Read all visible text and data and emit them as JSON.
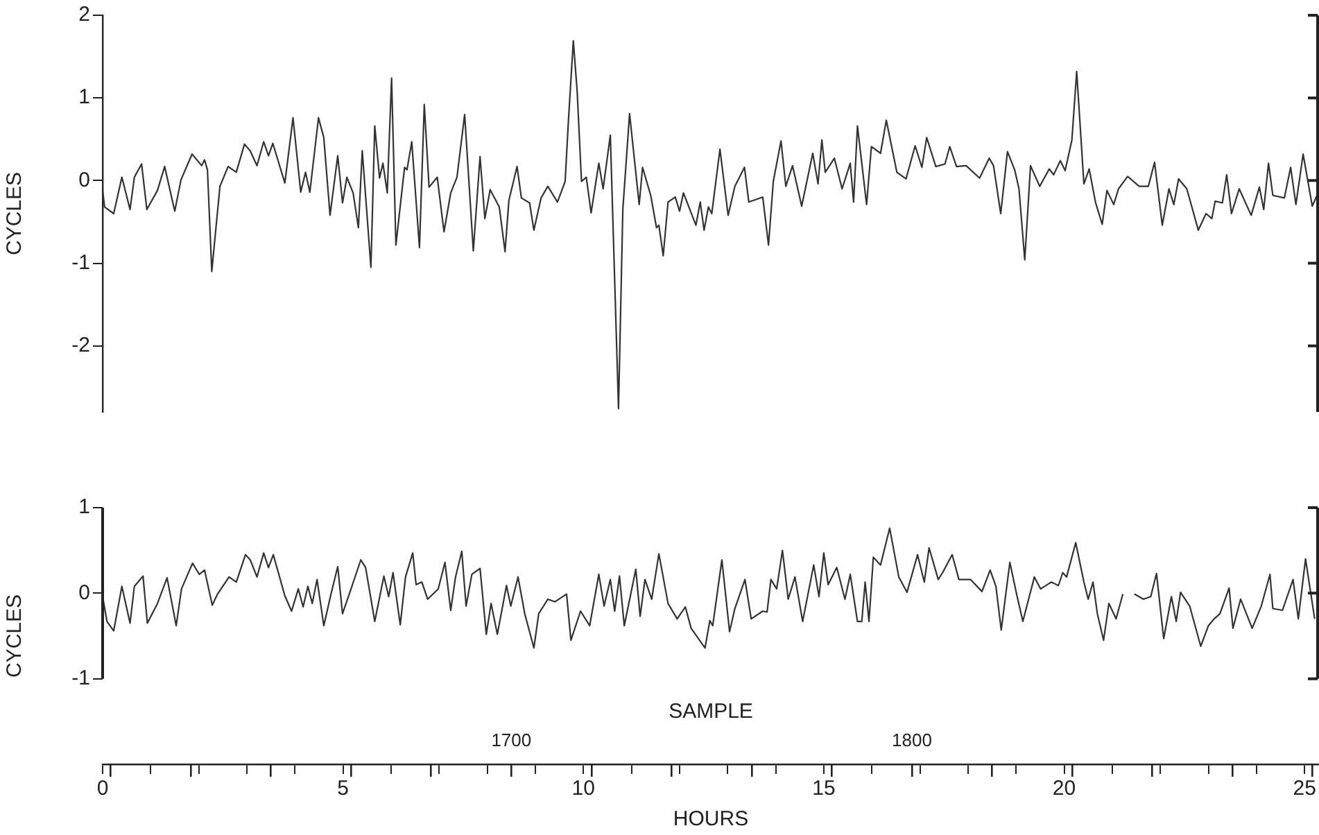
{
  "chart_data": [
    {
      "type": "line",
      "ylabel": "CYCLES",
      "xlim": [
        0,
        25.3
      ],
      "ylim": [
        -2.8,
        2
      ],
      "yticks": [
        -2,
        -1,
        0,
        1,
        2
      ],
      "tick_labels": "y",
      "grid": false,
      "legend": false,
      "marker": "none",
      "line_style": "solid",
      "series": [
        {
          "color": "#333333",
          "x": [
            0.0,
            0.04,
            0.23,
            0.4,
            0.57,
            0.66,
            0.81,
            0.92,
            1.14,
            1.29,
            1.5,
            1.63,
            1.86,
            2.06,
            2.12,
            2.18,
            2.27,
            2.44,
            2.61,
            2.78,
            2.95,
            3.07,
            3.21,
            3.35,
            3.45,
            3.54,
            3.79,
            3.96,
            4.12,
            4.22,
            4.31,
            4.49,
            4.6,
            4.73,
            4.89,
            4.99,
            5.08,
            5.21,
            5.32,
            5.4,
            5.58,
            5.66,
            5.76,
            5.83,
            5.92,
            6.01,
            6.1,
            6.28,
            6.33,
            6.43,
            6.59,
            6.69,
            6.79,
            6.96,
            7.1,
            7.24,
            7.37,
            7.53,
            7.71,
            7.85,
            7.95,
            8.06,
            8.25,
            8.37,
            8.45,
            8.62,
            8.71,
            8.88,
            8.97,
            9.12,
            9.26,
            9.46,
            9.62,
            9.69,
            9.79,
            9.87,
            9.96,
            10.06,
            10.16,
            10.32,
            10.41,
            10.56,
            10.73,
            10.82,
            10.96,
            11.16,
            11.23,
            11.4,
            11.52,
            11.57,
            11.66,
            11.76,
            11.91,
            12.0,
            12.08,
            12.34,
            12.43,
            12.51,
            12.6,
            12.67,
            12.84,
            13.01,
            13.15,
            13.35,
            13.44,
            13.73,
            13.85,
            13.95,
            14.11,
            14.21,
            14.35,
            14.54,
            14.77,
            14.88,
            14.96,
            15.03,
            15.22,
            15.38,
            15.55,
            15.62,
            15.7,
            15.89,
            15.99,
            16.18,
            16.3,
            16.52,
            16.71,
            16.9,
            17.04,
            17.14,
            17.33,
            17.52,
            17.62,
            17.76,
            17.96,
            18.24,
            18.44,
            18.53,
            18.68,
            18.82,
            18.97,
            19.06,
            19.18,
            19.3,
            19.49,
            19.69,
            19.78,
            19.92,
            20.02,
            20.16,
            20.26,
            20.41,
            20.52,
            20.65,
            20.79,
            20.89,
            21.03,
            21.13,
            21.32,
            21.56,
            21.75,
            21.88,
            22.04,
            22.18,
            22.28,
            22.38,
            22.55,
            22.79,
            22.95,
            23.07,
            23.14,
            23.29,
            23.38,
            23.48,
            23.64,
            23.89,
            24.06,
            24.15,
            24.25,
            24.34,
            24.58,
            24.71,
            24.82,
            24.97,
            25.16,
            25.28
          ],
          "values": [
            -0.12,
            -0.32,
            -0.4,
            0.04,
            -0.35,
            0.04,
            0.2,
            -0.35,
            -0.12,
            0.17,
            -0.37,
            0.01,
            0.32,
            0.18,
            0.25,
            0.13,
            -1.1,
            -0.07,
            0.17,
            0.1,
            0.44,
            0.36,
            0.18,
            0.47,
            0.3,
            0.45,
            -0.03,
            0.76,
            -0.14,
            0.1,
            -0.14,
            0.76,
            0.52,
            -0.42,
            0.3,
            -0.27,
            0.04,
            -0.15,
            -0.57,
            0.36,
            -1.05,
            0.66,
            0.03,
            0.21,
            -0.15,
            1.24,
            -0.78,
            0.16,
            0.13,
            0.47,
            -0.81,
            0.92,
            -0.08,
            0.04,
            -0.62,
            -0.15,
            0.04,
            0.8,
            -0.85,
            0.29,
            -0.46,
            -0.11,
            -0.32,
            -0.86,
            -0.24,
            0.17,
            -0.21,
            -0.27,
            -0.6,
            -0.21,
            -0.07,
            -0.26,
            -0.01,
            0.74,
            1.69,
            1.08,
            -0.01,
            0.04,
            -0.39,
            0.21,
            -0.1,
            0.55,
            -2.76,
            -0.35,
            0.81,
            -0.29,
            0.16,
            -0.18,
            -0.57,
            -0.54,
            -0.91,
            -0.26,
            -0.2,
            -0.37,
            -0.15,
            -0.54,
            -0.26,
            -0.6,
            -0.32,
            -0.4,
            0.38,
            -0.42,
            -0.07,
            0.16,
            -0.26,
            -0.2,
            -0.78,
            -0.01,
            0.48,
            -0.07,
            0.18,
            -0.31,
            0.33,
            -0.04,
            0.49,
            0.1,
            0.27,
            -0.1,
            0.21,
            -0.26,
            0.66,
            -0.29,
            0.41,
            0.33,
            0.73,
            0.1,
            0.02,
            0.42,
            0.16,
            0.52,
            0.17,
            0.2,
            0.41,
            0.17,
            0.18,
            0.03,
            0.27,
            0.18,
            -0.4,
            0.35,
            0.13,
            -0.1,
            -0.96,
            0.18,
            -0.07,
            0.14,
            0.07,
            0.24,
            0.12,
            0.49,
            1.32,
            -0.04,
            0.14,
            -0.26,
            -0.53,
            -0.12,
            -0.29,
            -0.1,
            0.05,
            -0.07,
            -0.07,
            0.22,
            -0.54,
            -0.1,
            -0.29,
            0.02,
            -0.1,
            -0.6,
            -0.4,
            -0.46,
            -0.25,
            -0.27,
            0.07,
            -0.4,
            -0.1,
            -0.42,
            -0.08,
            -0.35,
            0.21,
            -0.18,
            -0.21,
            0.16,
            -0.29,
            0.32,
            -0.31,
            -0.15
          ]
        }
      ]
    },
    {
      "type": "line",
      "ylabel": "CYCLES",
      "xlabel": "HOURS",
      "x2label": "SAMPLE",
      "xlim": [
        0,
        25.3
      ],
      "ylim": [
        -2,
        1
      ],
      "yticks": [
        -1,
        0,
        1
      ],
      "x2lim": [
        1598,
        1901.6
      ],
      "grid": false,
      "legend": false,
      "marker": "none",
      "line_style": "solid",
      "xticks": [
        0,
        {
          "value": 1,
          "label": null
        },
        {
          "value": 2,
          "label": null
        },
        {
          "value": 3,
          "label": null
        },
        {
          "value": 4,
          "label": null
        },
        5,
        {
          "value": 6,
          "label": null
        },
        {
          "value": 7,
          "label": null
        },
        {
          "value": 8,
          "label": null
        },
        {
          "value": 9,
          "label": null
        },
        10,
        {
          "value": 11,
          "label": null
        },
        {
          "value": 12,
          "label": null
        },
        {
          "value": 13,
          "label": null
        },
        {
          "value": 14,
          "label": null
        },
        15,
        {
          "value": 16,
          "label": null
        },
        {
          "value": 17,
          "label": null
        },
        {
          "value": 18,
          "label": null
        },
        {
          "value": 19,
          "label": null
        },
        20,
        {
          "value": 21,
          "label": null
        },
        {
          "value": 22,
          "label": null
        },
        {
          "value": 23,
          "label": null
        },
        {
          "value": 24,
          "label": null
        },
        25
      ],
      "x2ticks": [
        {
          "value": 1600,
          "label": null
        },
        {
          "value": 1620,
          "label": null
        },
        {
          "value": 1640,
          "label": null
        },
        {
          "value": 1660,
          "label": null
        },
        {
          "value": 1680,
          "label": null
        },
        1700,
        {
          "value": 1720,
          "label": null
        },
        {
          "value": 1740,
          "label": null
        },
        {
          "value": 1760,
          "label": null
        },
        {
          "value": 1780,
          "label": null
        },
        1800,
        {
          "value": 1820,
          "label": null
        },
        {
          "value": 1840,
          "label": null
        },
        {
          "value": 1860,
          "label": null
        },
        {
          "value": 1880,
          "label": null
        },
        {
          "value": 1900,
          "label": null
        }
      ],
      "series": [
        {
          "color": "#333333",
          "x": [
            0.0,
            0.09,
            0.23,
            0.4,
            0.57,
            0.66,
            0.84,
            0.93,
            1.14,
            1.34,
            1.53,
            1.64,
            1.87,
            2.01,
            2.12,
            2.28,
            2.39,
            2.63,
            2.78,
            2.97,
            3.07,
            3.21,
            3.35,
            3.45,
            3.55,
            3.79,
            3.93,
            4.07,
            4.17,
            4.27,
            4.36,
            4.46,
            4.6,
            4.75,
            4.89,
            4.99,
            5.13,
            5.37,
            5.47,
            5.66,
            5.85,
            5.95,
            6.04,
            6.19,
            6.3,
            6.45,
            6.52,
            6.64,
            6.76,
            6.98,
            7.12,
            7.24,
            7.34,
            7.47,
            7.56,
            7.68,
            7.85,
            7.98,
            8.08,
            8.21,
            8.4,
            8.49,
            8.64,
            8.78,
            8.97,
            9.07,
            9.26,
            9.41,
            9.65,
            9.74,
            9.94,
            10.13,
            10.32,
            10.43,
            10.56,
            10.65,
            10.75,
            10.85,
            11.09,
            11.18,
            11.28,
            11.42,
            11.57,
            11.76,
            11.95,
            12.12,
            12.24,
            12.53,
            12.63,
            12.69,
            12.88,
            13.04,
            13.15,
            13.36,
            13.49,
            13.73,
            13.82,
            13.9,
            14.02,
            14.14,
            14.26,
            14.4,
            14.56,
            14.79,
            14.9,
            15.0,
            15.09,
            15.27,
            15.44,
            15.55,
            15.7,
            15.79,
            15.86,
            15.94,
            16.03,
            16.18,
            16.37,
            16.56,
            16.73,
            16.95,
            17.09,
            17.19,
            17.38,
            17.48,
            17.67,
            17.81,
            18.05,
            18.29,
            18.46,
            18.58,
            18.69,
            18.87,
            19.01,
            19.14,
            19.38,
            19.51,
            19.73,
            19.88,
            19.97,
            20.05,
            20.24,
            20.41,
            20.5,
            20.6,
            20.69,
            20.82,
            20.93,
            21.08,
            21.22,
            21.3,
            21.46,
            21.65,
            21.8,
            21.92,
            22.07,
            22.23,
            22.33,
            22.42,
            22.61,
            22.84,
            23.0,
            23.12,
            23.24,
            23.43,
            23.51,
            23.67,
            23.91,
            24.1,
            24.28,
            24.34,
            24.54,
            24.76,
            24.87,
            25.02,
            25.21
          ],
          "values": [
            -0.04,
            -0.33,
            -0.44,
            0.08,
            -0.35,
            0.08,
            0.2,
            -0.35,
            -0.12,
            0.18,
            -0.38,
            0.05,
            0.35,
            0.22,
            0.27,
            -0.14,
            -0.01,
            0.19,
            0.13,
            0.45,
            0.39,
            0.19,
            0.47,
            0.3,
            0.45,
            -0.03,
            -0.21,
            0.05,
            -0.16,
            0.08,
            -0.12,
            0.16,
            -0.38,
            -0.01,
            0.31,
            -0.24,
            -0.01,
            0.39,
            0.3,
            -0.33,
            0.2,
            -0.04,
            0.24,
            -0.37,
            0.19,
            0.47,
            0.1,
            0.13,
            -0.07,
            0.05,
            0.36,
            -0.2,
            0.19,
            0.49,
            -0.15,
            0.22,
            0.29,
            -0.48,
            -0.12,
            -0.48,
            0.09,
            -0.15,
            0.19,
            -0.24,
            -0.64,
            -0.24,
            -0.07,
            -0.1,
            -0.01,
            -0.55,
            -0.21,
            -0.38,
            0.22,
            -0.15,
            0.16,
            -0.21,
            0.2,
            -0.38,
            0.28,
            -0.27,
            0.16,
            -0.07,
            0.46,
            -0.12,
            -0.3,
            -0.16,
            -0.41,
            -0.64,
            -0.32,
            -0.38,
            0.39,
            -0.45,
            -0.18,
            0.16,
            -0.3,
            -0.21,
            -0.22,
            0.16,
            0.05,
            0.5,
            -0.07,
            0.19,
            -0.33,
            0.33,
            -0.04,
            0.47,
            0.1,
            0.3,
            -0.07,
            0.22,
            -0.33,
            -0.33,
            0.13,
            -0.33,
            0.42,
            0.33,
            0.76,
            0.19,
            0.01,
            0.45,
            0.13,
            0.53,
            0.16,
            0.25,
            0.45,
            0.16,
            0.16,
            0.02,
            0.27,
            0.08,
            -0.43,
            0.36,
            -0.01,
            -0.33,
            0.19,
            0.05,
            0.13,
            0.09,
            0.24,
            0.19,
            0.59,
            0.13,
            -0.07,
            0.13,
            -0.24,
            -0.55,
            -0.12,
            -0.3,
            -0.01,
            null,
            -0.01,
            -0.07,
            -0.04,
            0.23,
            -0.53,
            -0.04,
            -0.33,
            0.01,
            -0.15,
            -0.62,
            -0.38,
            -0.3,
            -0.24,
            0.06,
            -0.41,
            -0.07,
            -0.41,
            -0.15,
            0.22,
            -0.18,
            -0.2,
            0.16,
            -0.3,
            0.4,
            -0.3
          ]
        }
      ]
    }
  ]
}
